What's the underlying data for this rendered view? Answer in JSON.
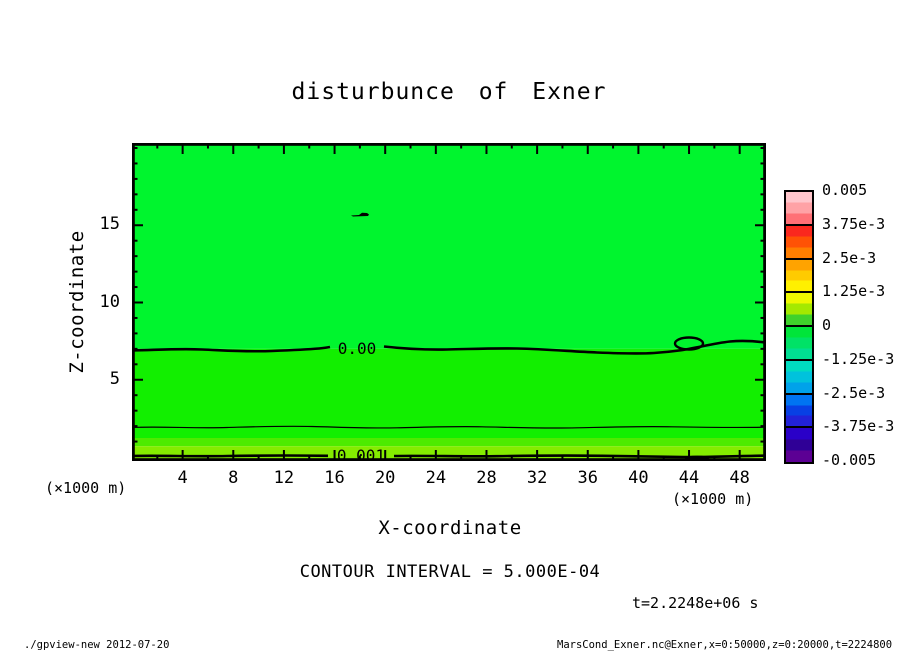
{
  "title": "disturbunce of Exner",
  "axes": {
    "x": {
      "label": "X-coordinate",
      "unit": "(×1000 m)",
      "tick_values": [
        4,
        8,
        12,
        16,
        20,
        24,
        28,
        32,
        36,
        40,
        44,
        48
      ],
      "minor_tick_values": [
        2,
        6,
        10,
        14,
        18,
        22,
        26,
        30,
        34,
        38,
        42,
        46
      ],
      "range_km": [
        0,
        50
      ]
    },
    "z": {
      "label": "Z-coordinate",
      "unit": "(×1000 m)",
      "tick_values": [
        5,
        10,
        15
      ],
      "minor_tick_values": [
        1,
        2,
        3,
        4,
        6,
        7,
        8,
        9,
        11,
        12,
        13,
        14,
        16,
        17,
        18,
        19,
        20
      ],
      "range_km": [
        0,
        20
      ]
    }
  },
  "colorbar": {
    "labels": [
      "0.005",
      "3.75e-3",
      "2.5e-3",
      "1.25e-3",
      "0",
      "-1.25e-3",
      "-2.5e-3",
      "-3.75e-3",
      "-0.005"
    ],
    "segments": [
      {
        "stripes": [
          "#FFC6CC",
          "#FFA2A6",
          "#FF7076"
        ]
      },
      {
        "stripes": [
          "#FA281E",
          "#FF5205",
          "#FF7E00"
        ]
      },
      {
        "stripes": [
          "#FFA300",
          "#FFCB00",
          "#FFF000"
        ]
      },
      {
        "stripes": [
          "#EEF800",
          "#A4E900",
          "#3FD22B"
        ]
      },
      {
        "stripes": [
          "#00E53A",
          "#00E266",
          "#00DE92"
        ]
      },
      {
        "stripes": [
          "#00DCC0",
          "#00C2DC",
          "#00A2EA"
        ]
      },
      {
        "stripes": [
          "#0074F2",
          "#0840E4",
          "#2222D8"
        ]
      },
      {
        "stripes": [
          "#2A00C8",
          "#2F0096",
          "#5C0094"
        ]
      }
    ]
  },
  "contour_labels": {
    "zero": "0.00",
    "one_mil": "0.001"
  },
  "annotations": {
    "contour_interval": "CONTOUR INTERVAL = 5.000E-04",
    "time": "t=2.2248e+06 s"
  },
  "footer": {
    "left": "./gpview-new  2012-07-20",
    "right": "MarsCond_Exner.nc@Exner,x=0:50000,z=0:20000,t=2224800"
  },
  "chart_data": {
    "type": "heatmap",
    "subtype": "filled-contour",
    "title": "disturbunce of Exner",
    "xlabel": "X-coordinate",
    "ylabel": "Z-coordinate",
    "axis_units": "(×1000 m)",
    "xlim": [
      0,
      50
    ],
    "ylim": [
      0,
      20
    ],
    "x_ticks": [
      4,
      8,
      12,
      16,
      20,
      24,
      28,
      32,
      36,
      40,
      44,
      48
    ],
    "z_ticks": [
      5,
      10,
      15
    ],
    "contour_interval": 0.0005,
    "colorbar_ticks": [
      0.005,
      0.00375,
      0.0025,
      0.00125,
      0,
      -0.00125,
      -0.0025,
      -0.00375,
      -0.005
    ],
    "colorbar_range": [
      -0.005,
      0.005
    ],
    "time_seconds": 2224800,
    "bands": [
      {
        "z_from": 7.0,
        "z_to": 20.4,
        "value_range": "-5e-4 to 0",
        "color": "#00F52E",
        "first": true
      },
      {
        "z_from": 1.23,
        "z_to": 7.0,
        "value_range": "0 to 5e-4",
        "color": "#12EF00"
      },
      {
        "z_from": 0.7,
        "z_to": 1.23,
        "value_range": "5e-4 to 1e-3",
        "color": "#4DEB00"
      },
      {
        "z_from": 0.0,
        "z_to": 0.7,
        "value_range": "~1e-3",
        "color": "#84EC00",
        "last": true
      }
    ],
    "contours": [
      {
        "level": 0.0,
        "label": "0.00",
        "style": "thick",
        "approx_z": 7.0,
        "extent": "full width, wavy"
      },
      {
        "level": 0.0,
        "style": "closed-loop",
        "x": 44.1,
        "z": 7.4
      },
      {
        "level": 0.0,
        "style": "small-closed",
        "x": 18.0,
        "z": 15.7
      },
      {
        "level": 0.0005,
        "style": "thin",
        "approx_z": 1.9,
        "extent": "full width, wavy"
      },
      {
        "level": 0.001,
        "label": "0.001",
        "style": "thick",
        "approx_z": 0.1,
        "extent": "full width, near bottom edge"
      }
    ]
  }
}
